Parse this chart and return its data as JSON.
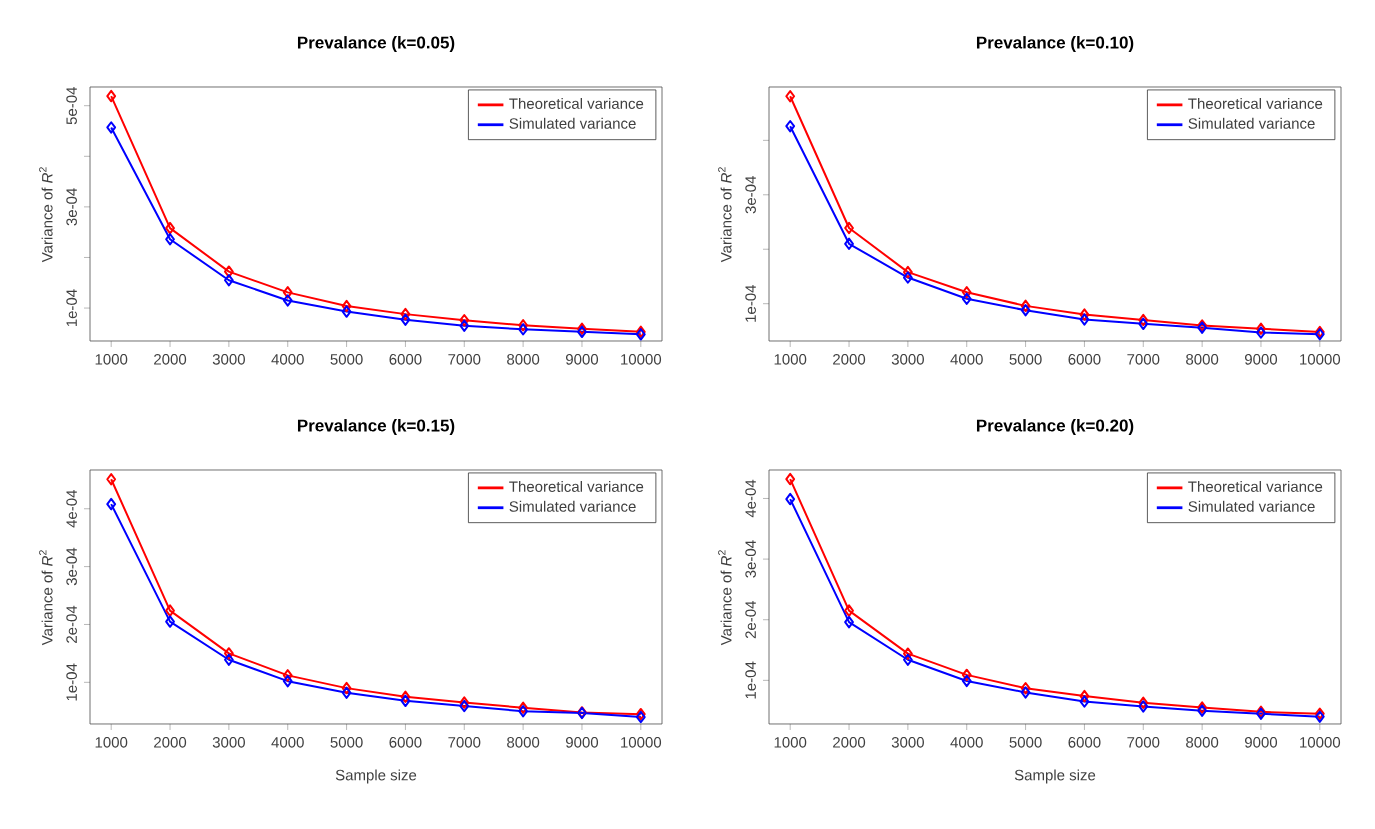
{
  "chart_data": [
    {
      "type": "line",
      "title": "Prevalance (k=0.05)",
      "ylabel": "Variance of *R*$^{2}$",
      "legend": "top right",
      "marker": "diamond",
      "line_style": "solid",
      "x": [
        1000,
        2000,
        3000,
        4000,
        5000,
        6000,
        7000,
        8000,
        9000,
        10000
      ],
      "series": [
        {
          "name": "Theoretical variance",
          "color": "#ff0000",
          "values": [
            0.000519,
            0.000258,
            0.000172,
            0.000131,
            0.000104,
            8.8e-05,
            7.6e-05,
            6.6e-05,
            5.9e-05,
            5.3e-05
          ]
        },
        {
          "name": "Simulated variance",
          "color": "#0000ff",
          "values": [
            0.000457,
            0.000236,
            0.000155,
            0.000115,
            9.3e-05,
            7.7e-05,
            6.5e-05,
            5.8e-05,
            5.3e-05,
            4.8e-05
          ]
        }
      ],
      "xlim": [
        640,
        10360
      ],
      "ylim": [
        3.49e-05,
        0.000537
      ],
      "xticks": [
        1000,
        2000,
        3000,
        4000,
        5000,
        6000,
        7000,
        8000,
        9000,
        10000
      ],
      "yticks": [
        {
          "value": 0.0001,
          "label": "1e-04"
        },
        {
          "value": 0.0002,
          "label": null
        },
        {
          "value": 0.0003,
          "label": "3e-04"
        },
        {
          "value": 0.0004,
          "label": null
        },
        {
          "value": 0.0005,
          "label": "5e-04"
        }
      ]
    },
    {
      "type": "line",
      "title": "Prevalance (k=0.10)",
      "ylabel": "Variance of *R*$^{2}$",
      "legend": "top right",
      "marker": "diamond",
      "line_style": "solid",
      "x": [
        1000,
        2000,
        3000,
        4000,
        5000,
        6000,
        7000,
        8000,
        9000,
        10000
      ],
      "series": [
        {
          "name": "Theoretical variance",
          "color": "#ff0000",
          "values": [
            0.000481,
            0.000239,
            0.000158,
            0.000121,
            9.6e-05,
            8e-05,
            7e-05,
            6e-05,
            5.4e-05,
            4.8e-05
          ]
        },
        {
          "name": "Simulated variance",
          "color": "#0000ff",
          "values": [
            0.000426,
            0.00021,
            0.000148,
            0.000109,
            8.8e-05,
            7.1e-05,
            6.3e-05,
            5.6e-05,
            4.7e-05,
            4.4e-05
          ]
        }
      ],
      "xlim": [
        640,
        10360
      ],
      "ylim": [
        3.15e-05,
        0.000498
      ],
      "xticks": [
        1000,
        2000,
        3000,
        4000,
        5000,
        6000,
        7000,
        8000,
        9000,
        10000
      ],
      "yticks": [
        {
          "value": 0.0001,
          "label": "1e-04"
        },
        {
          "value": 0.0002,
          "label": null
        },
        {
          "value": 0.0003,
          "label": "3e-04"
        },
        {
          "value": 0.0004,
          "label": null
        }
      ]
    },
    {
      "type": "line",
      "title": "Prevalance (k=0.15)",
      "xlabel": "Sample size",
      "ylabel": "Variance of *R*$^{2}$",
      "legend": "top right",
      "marker": "diamond",
      "line_style": "solid",
      "x": [
        1000,
        2000,
        3000,
        4000,
        5000,
        6000,
        7000,
        8000,
        9000,
        10000
      ],
      "series": [
        {
          "name": "Theoretical variance",
          "color": "#ff0000",
          "values": [
            0.000451,
            0.000224,
            0.00015,
            0.000112,
            9e-05,
            7.5e-05,
            6.5e-05,
            5.6e-05,
            4.8e-05,
            4.5e-05
          ]
        },
        {
          "name": "Simulated variance",
          "color": "#0000ff",
          "values": [
            0.000408,
            0.000205,
            0.000139,
            0.000102,
            8.2e-05,
            6.8e-05,
            5.9e-05,
            5e-05,
            4.7e-05,
            4e-05
          ]
        }
      ],
      "xlim": [
        640,
        10360
      ],
      "ylim": [
        2.8e-05,
        0.000467
      ],
      "xticks": [
        1000,
        2000,
        3000,
        4000,
        5000,
        6000,
        7000,
        8000,
        9000,
        10000
      ],
      "yticks": [
        {
          "value": 0.0001,
          "label": "1e-04"
        },
        {
          "value": 0.0002,
          "label": "2e-04"
        },
        {
          "value": 0.0003,
          "label": "3e-04"
        },
        {
          "value": 0.0004,
          "label": "4e-04"
        }
      ]
    },
    {
      "type": "line",
      "title": "Prevalance (k=0.20)",
      "xlabel": "Sample size",
      "ylabel": "Variance of *R*$^{2}$",
      "legend": "top right",
      "marker": "diamond",
      "line_style": "solid",
      "x": [
        1000,
        2000,
        3000,
        4000,
        5000,
        6000,
        7000,
        8000,
        9000,
        10000
      ],
      "series": [
        {
          "name": "Theoretical variance",
          "color": "#ff0000",
          "values": [
            0.000432,
            0.000215,
            0.000144,
            0.000109,
            8.7e-05,
            7.4e-05,
            6.3e-05,
            5.5e-05,
            4.8e-05,
            4.5e-05
          ]
        },
        {
          "name": "Simulated variance",
          "color": "#0000ff",
          "values": [
            0.000399,
            0.000196,
            0.000134,
            9.9e-05,
            8e-05,
            6.5e-05,
            5.7e-05,
            5e-05,
            4.5e-05,
            4e-05
          ]
        }
      ],
      "xlim": [
        640,
        10360
      ],
      "ylim": [
        2.8e-05,
        0.000447
      ],
      "xticks": [
        1000,
        2000,
        3000,
        4000,
        5000,
        6000,
        7000,
        8000,
        9000,
        10000
      ],
      "yticks": [
        {
          "value": 0.0001,
          "label": "1e-04"
        },
        {
          "value": 0.0002,
          "label": "2e-04"
        },
        {
          "value": 0.0003,
          "label": "3e-04"
        },
        {
          "value": 0.0004,
          "label": "4e-04"
        }
      ]
    }
  ]
}
